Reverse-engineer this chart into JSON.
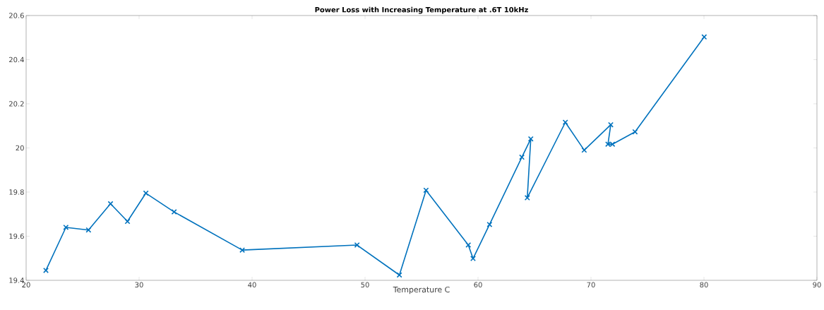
{
  "chart_data": {
    "type": "line",
    "title": "Power Loss with Increasing Temperature at .6T 10kHz",
    "xlabel": "Temperature C",
    "x": [
      21.75,
      23.52,
      25.52,
      27.47,
      28.97,
      30.6,
      33.1,
      39.13,
      49.29,
      53.04,
      55.4,
      59.14,
      59.56,
      61.02,
      63.88,
      64.67,
      64.36,
      67.73,
      69.4,
      71.75,
      71.5,
      71.9,
      73.9,
      80.02
    ],
    "series": [
      {
        "color": "#0072bd",
        "values": [
          19.445,
          19.64,
          19.628,
          19.747,
          19.667,
          19.795,
          19.71,
          19.537,
          19.56,
          19.424,
          19.808,
          19.56,
          19.499,
          19.653,
          19.958,
          20.041,
          19.774,
          20.116,
          19.99,
          20.105,
          20.017,
          20.017,
          20.073,
          20.503
        ]
      }
    ],
    "marker": "cross",
    "line_style": "solid",
    "xlim": [
      20,
      90
    ],
    "xticks": [
      20,
      30,
      40,
      50,
      60,
      70,
      80,
      90
    ],
    "ylim": [
      19.4,
      20.6
    ],
    "yticks": [
      19.4,
      19.6,
      19.8,
      20,
      20.2,
      20.4,
      20.6
    ]
  }
}
